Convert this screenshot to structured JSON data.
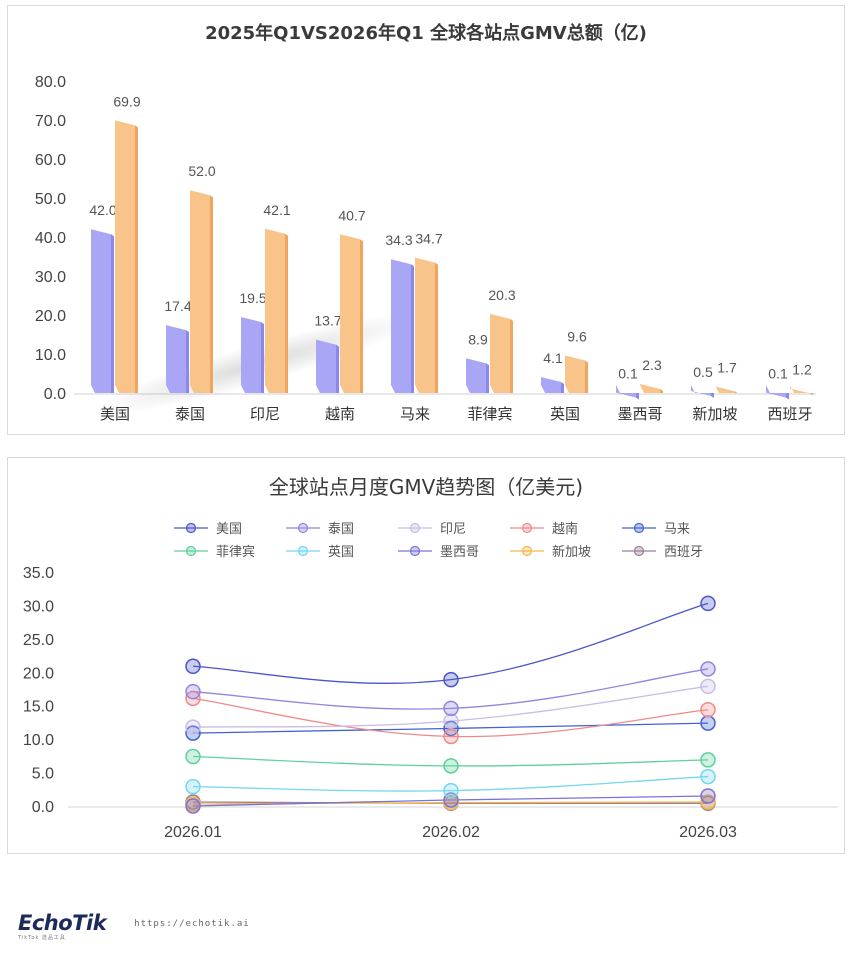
{
  "bar_chart": {
    "title": "2025年Q1VS2026年Q1  全球各站点GMV总额（亿)"
  },
  "line_chart": {
    "title": "全球站点月度GMV趋势图（亿美元)"
  },
  "brand": {
    "logo": "EchoTik",
    "sub": "TikTok 选品工具",
    "url": "https://echotik.ai"
  },
  "chart_data": [
    {
      "type": "bar",
      "title": "2025年Q1VS2026年Q1  全球各站点GMV总额（亿)",
      "categories": [
        "美国",
        "泰国",
        "印尼",
        "越南",
        "马来",
        "菲律宾",
        "英国",
        "墨西哥",
        "新加坡",
        "西班牙"
      ],
      "series": [
        {
          "values": [
            42.0,
            17.4,
            19.5,
            13.7,
            34.3,
            8.9,
            4.1,
            0.1,
            0.5,
            0.1
          ],
          "color": "#a9a6f5",
          "color_dark": "#8c87ea"
        },
        {
          "values": [
            69.9,
            52.0,
            42.1,
            40.7,
            34.7,
            20.3,
            9.6,
            2.3,
            1.7,
            1.2
          ],
          "color": "#f8c48a",
          "color_dark": "#eea55f"
        }
      ],
      "yticks": [
        "0.0",
        "10.0",
        "20.0",
        "30.0",
        "40.0",
        "50.0",
        "60.0",
        "70.0",
        "80.0"
      ],
      "ylim": [
        0,
        80
      ],
      "grid": false
    },
    {
      "type": "line",
      "title": "全球站点月度GMV趋势图（亿美元)",
      "x": [
        "2026.01",
        "2026.02",
        "2026.03"
      ],
      "yticks": [
        "0.0",
        "5.0",
        "10.0",
        "15.0",
        "20.0",
        "25.0",
        "30.0",
        "35.0"
      ],
      "ylim": [
        0,
        35
      ],
      "legend_position": "top",
      "series": [
        {
          "name": "美国",
          "values": [
            20.9,
            18.9,
            30.3
          ],
          "color": "#4a55c9"
        },
        {
          "name": "泰国",
          "values": [
            17.1,
            14.6,
            20.5
          ],
          "color": "#8f86df"
        },
        {
          "name": "印尼",
          "values": [
            11.8,
            12.7,
            17.9
          ],
          "color": "#c8bde6"
        },
        {
          "name": "越南",
          "values": [
            16.1,
            10.4,
            14.4
          ],
          "color": "#f08a8a"
        },
        {
          "name": "马来",
          "values": [
            10.9,
            11.6,
            12.4
          ],
          "color": "#3f63d3"
        },
        {
          "name": "菲律宾",
          "values": [
            7.4,
            6.0,
            6.9
          ],
          "color": "#5fcf9e"
        },
        {
          "name": "英国",
          "values": [
            2.9,
            2.3,
            4.4
          ],
          "color": "#75d6ef"
        },
        {
          "name": "墨西哥",
          "values": [
            0.0,
            0.9,
            1.5
          ],
          "color": "#7a73d8"
        },
        {
          "name": "新加坡",
          "values": [
            0.3,
            0.5,
            0.6
          ],
          "color": "#f5b74d"
        },
        {
          "name": "西班牙",
          "values": [
            0.6,
            0.4,
            0.4
          ],
          "color": "#9b7f94"
        }
      ]
    }
  ]
}
